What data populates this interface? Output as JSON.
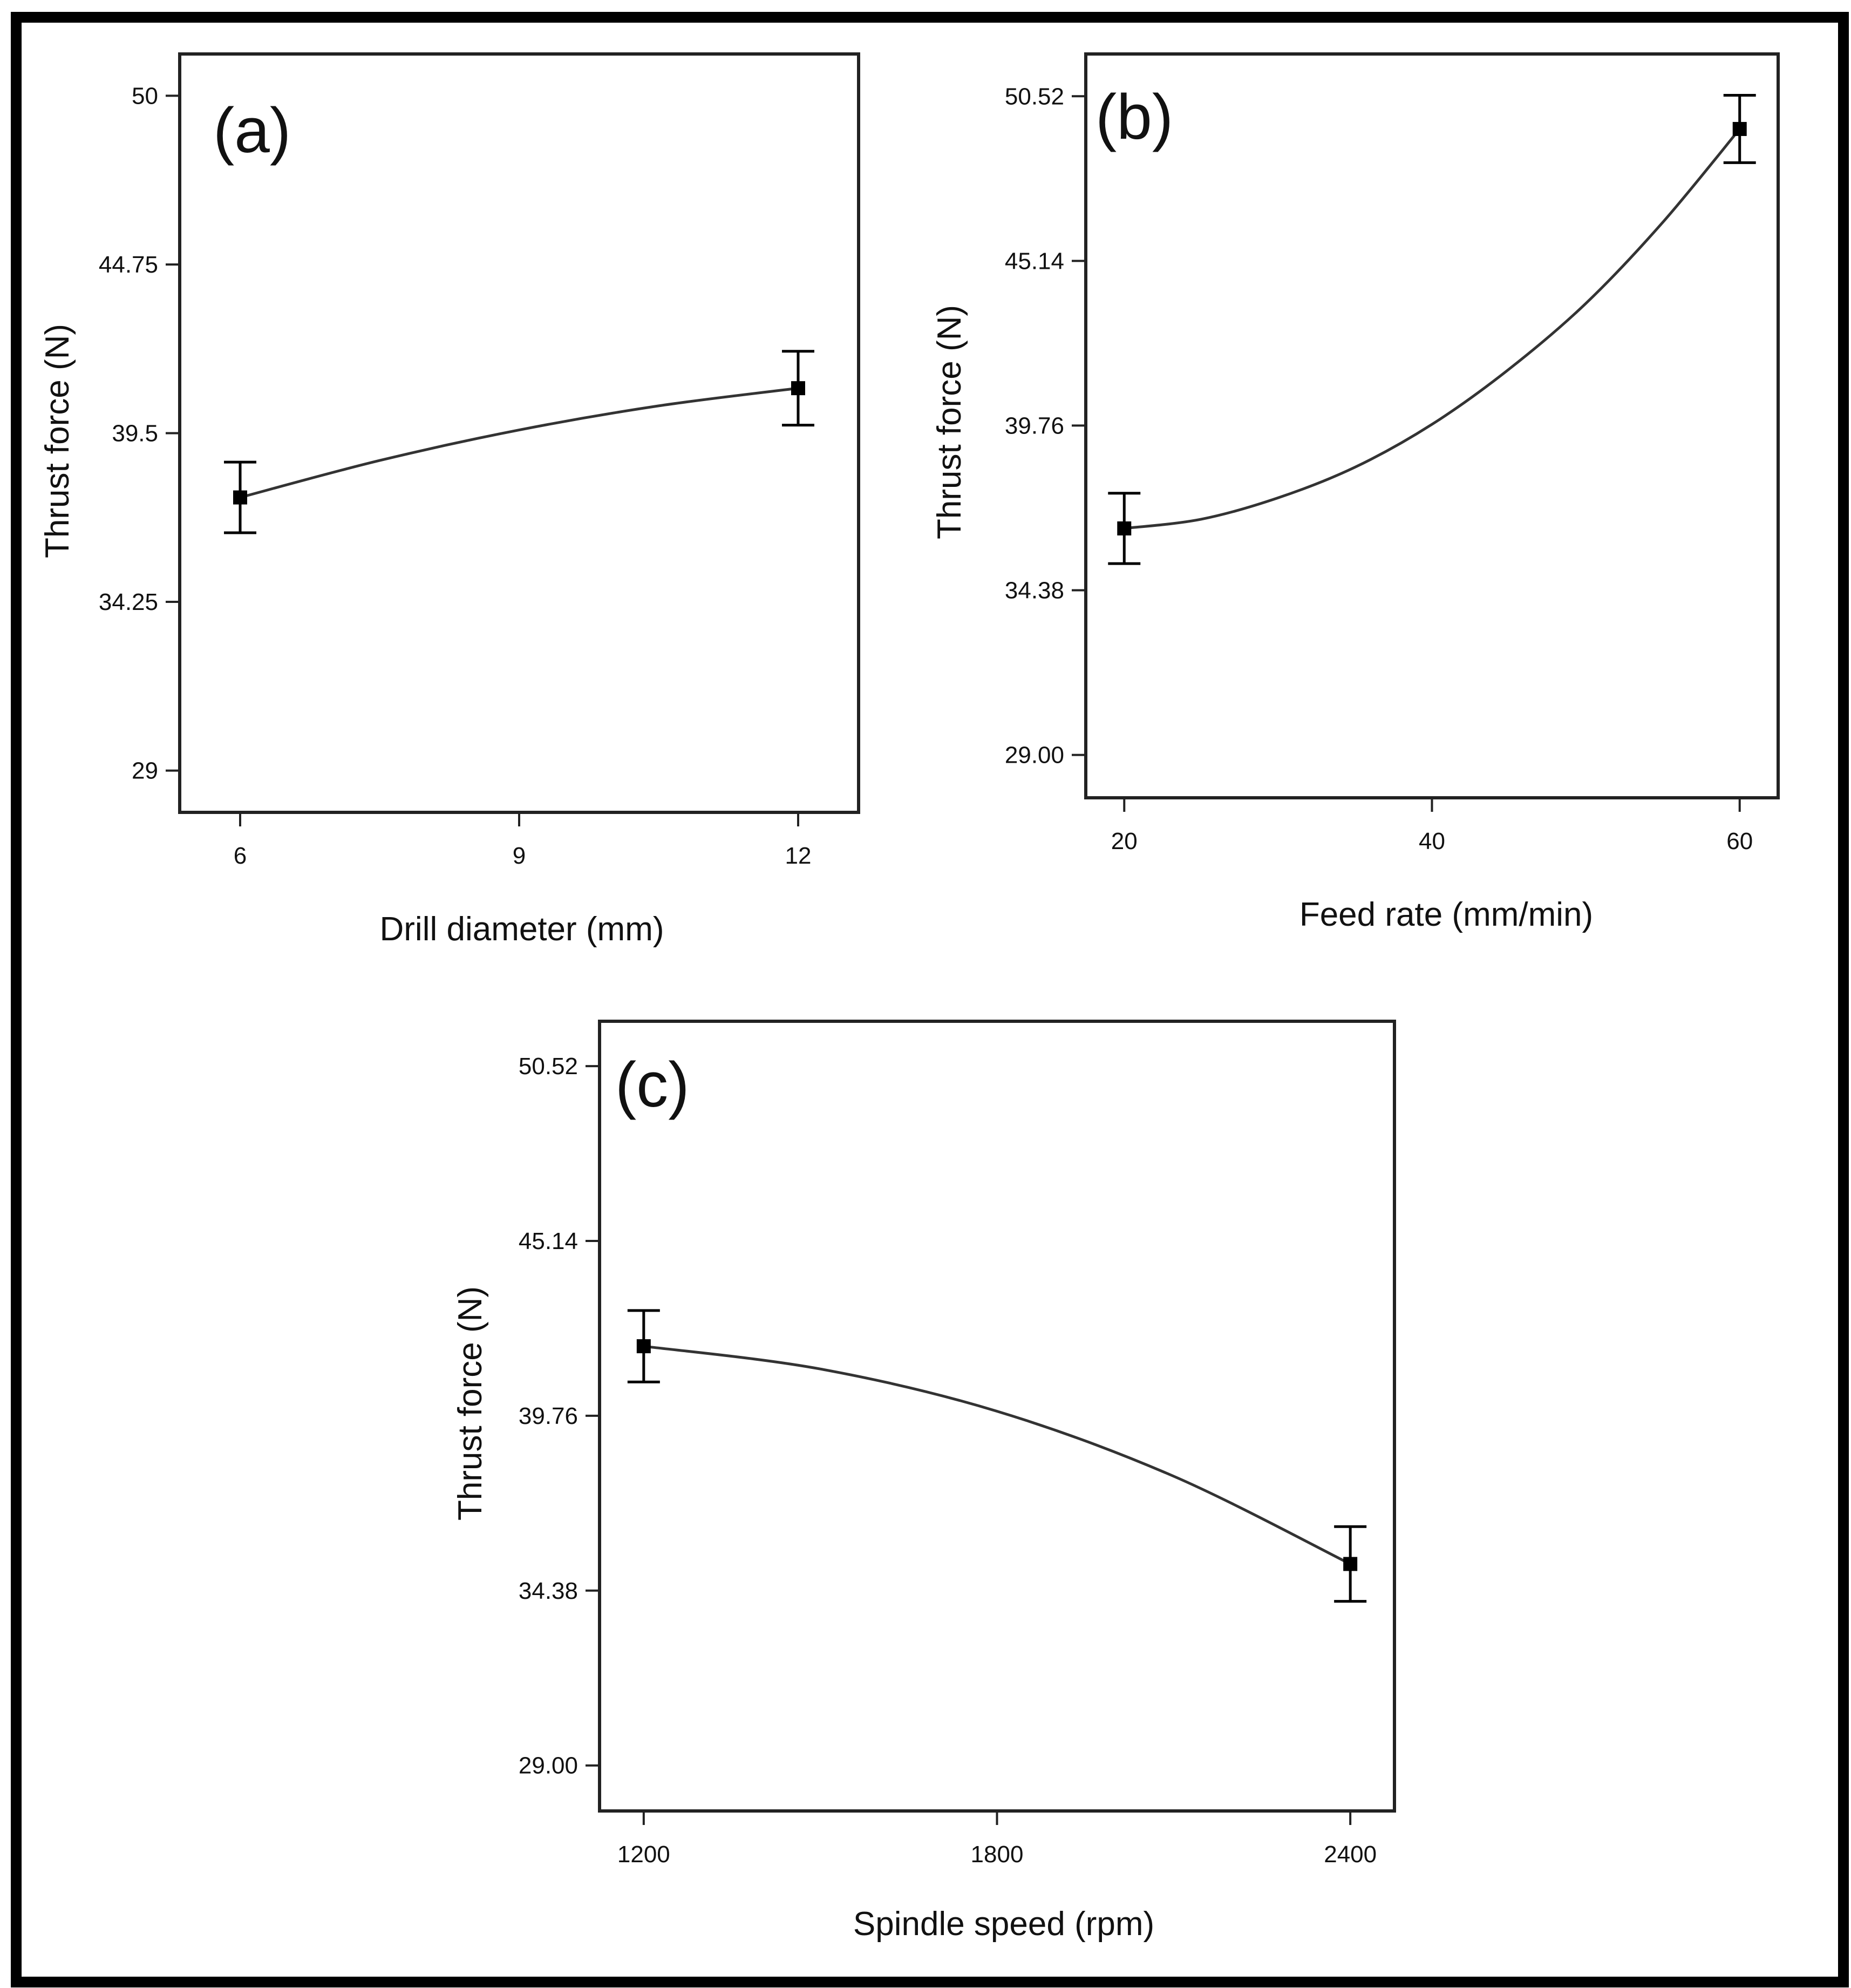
{
  "figure": {
    "panels": [
      {
        "id": "a",
        "label": "(a)",
        "frame_color": "#222222",
        "line_color": "#333333",
        "marker_color": "#000000",
        "chart_data": {
          "type": "line",
          "title": "(a)",
          "xlabel": "Drill diameter (mm)",
          "ylabel": "Thrust force (N)",
          "xlim": [
            5.35,
            12.65
          ],
          "ylim": [
            27.7,
            51.3
          ],
          "xticks": [
            6,
            9,
            12
          ],
          "xtick_labels": [
            "6",
            "9",
            "12"
          ],
          "yticks": [
            29,
            34.25,
            39.5,
            44.75,
            50
          ],
          "ytick_labels": [
            "29",
            "34.25",
            "39.5",
            "44.75",
            "50"
          ],
          "points": [
            {
              "x": 6,
              "y": 37.5,
              "err": 1.1
            },
            {
              "x": 12,
              "y": 40.9,
              "err": 1.15
            }
          ],
          "curve": {
            "x": [
              6,
              7.5,
              9,
              10.5,
              12
            ],
            "y": [
              37.5,
              38.65,
              39.6,
              40.35,
              40.9
            ]
          }
        }
      },
      {
        "id": "b",
        "label": "(b)",
        "frame_color": "#222222",
        "line_color": "#333333",
        "marker_color": "#000000",
        "chart_data": {
          "type": "line",
          "title": "(b)",
          "xlabel": "Feed rate (mm/min)",
          "ylabel": "Thrust force (N)",
          "xlim": [
            17.5,
            62.5
          ],
          "ylim": [
            27.6,
            51.9
          ],
          "xticks": [
            20,
            40,
            60
          ],
          "xtick_labels": [
            "20",
            "40",
            "60"
          ],
          "yticks": [
            29.0,
            34.38,
            39.76,
            45.14,
            50.52
          ],
          "ytick_labels": [
            "29.00",
            "34.38",
            "39.76",
            "45.14",
            "50.52"
          ],
          "points": [
            {
              "x": 20,
              "y": 36.4,
              "err": 1.15
            },
            {
              "x": 60,
              "y": 49.45,
              "err": 1.1
            }
          ],
          "curve": {
            "x": [
              20,
              25,
              30,
              35,
              40,
              45,
              50,
              55,
              60
            ],
            "y": [
              36.4,
              36.7,
              37.4,
              38.4,
              39.8,
              41.6,
              43.75,
              46.4,
              49.45
            ]
          }
        }
      },
      {
        "id": "c",
        "label": "(c)",
        "frame_color": "#222222",
        "line_color": "#333333",
        "marker_color": "#000000",
        "chart_data": {
          "type": "line",
          "title": "(c)",
          "xlabel": "Spindle speed (rpm)",
          "ylabel": "Thrust force (N)",
          "xlim": [
            1125,
            2475
          ],
          "ylim": [
            27.6,
            51.9
          ],
          "xticks": [
            1200,
            1800,
            2400
          ],
          "xtick_labels": [
            "1200",
            "1800",
            "2400"
          ],
          "yticks": [
            29.0,
            34.38,
            39.76,
            45.14,
            50.52
          ],
          "ytick_labels": [
            "29.00",
            "34.38",
            "39.76",
            "45.14",
            "50.52"
          ],
          "points": [
            {
              "x": 1200,
              "y": 41.9,
              "err": 1.1
            },
            {
              "x": 2400,
              "y": 35.2,
              "err": 1.15
            }
          ],
          "curve": {
            "x": [
              1200,
              1500,
              1800,
              2100,
              2400
            ],
            "y": [
              41.9,
              41.2,
              39.9,
              37.9,
              35.2
            ]
          }
        }
      }
    ]
  }
}
